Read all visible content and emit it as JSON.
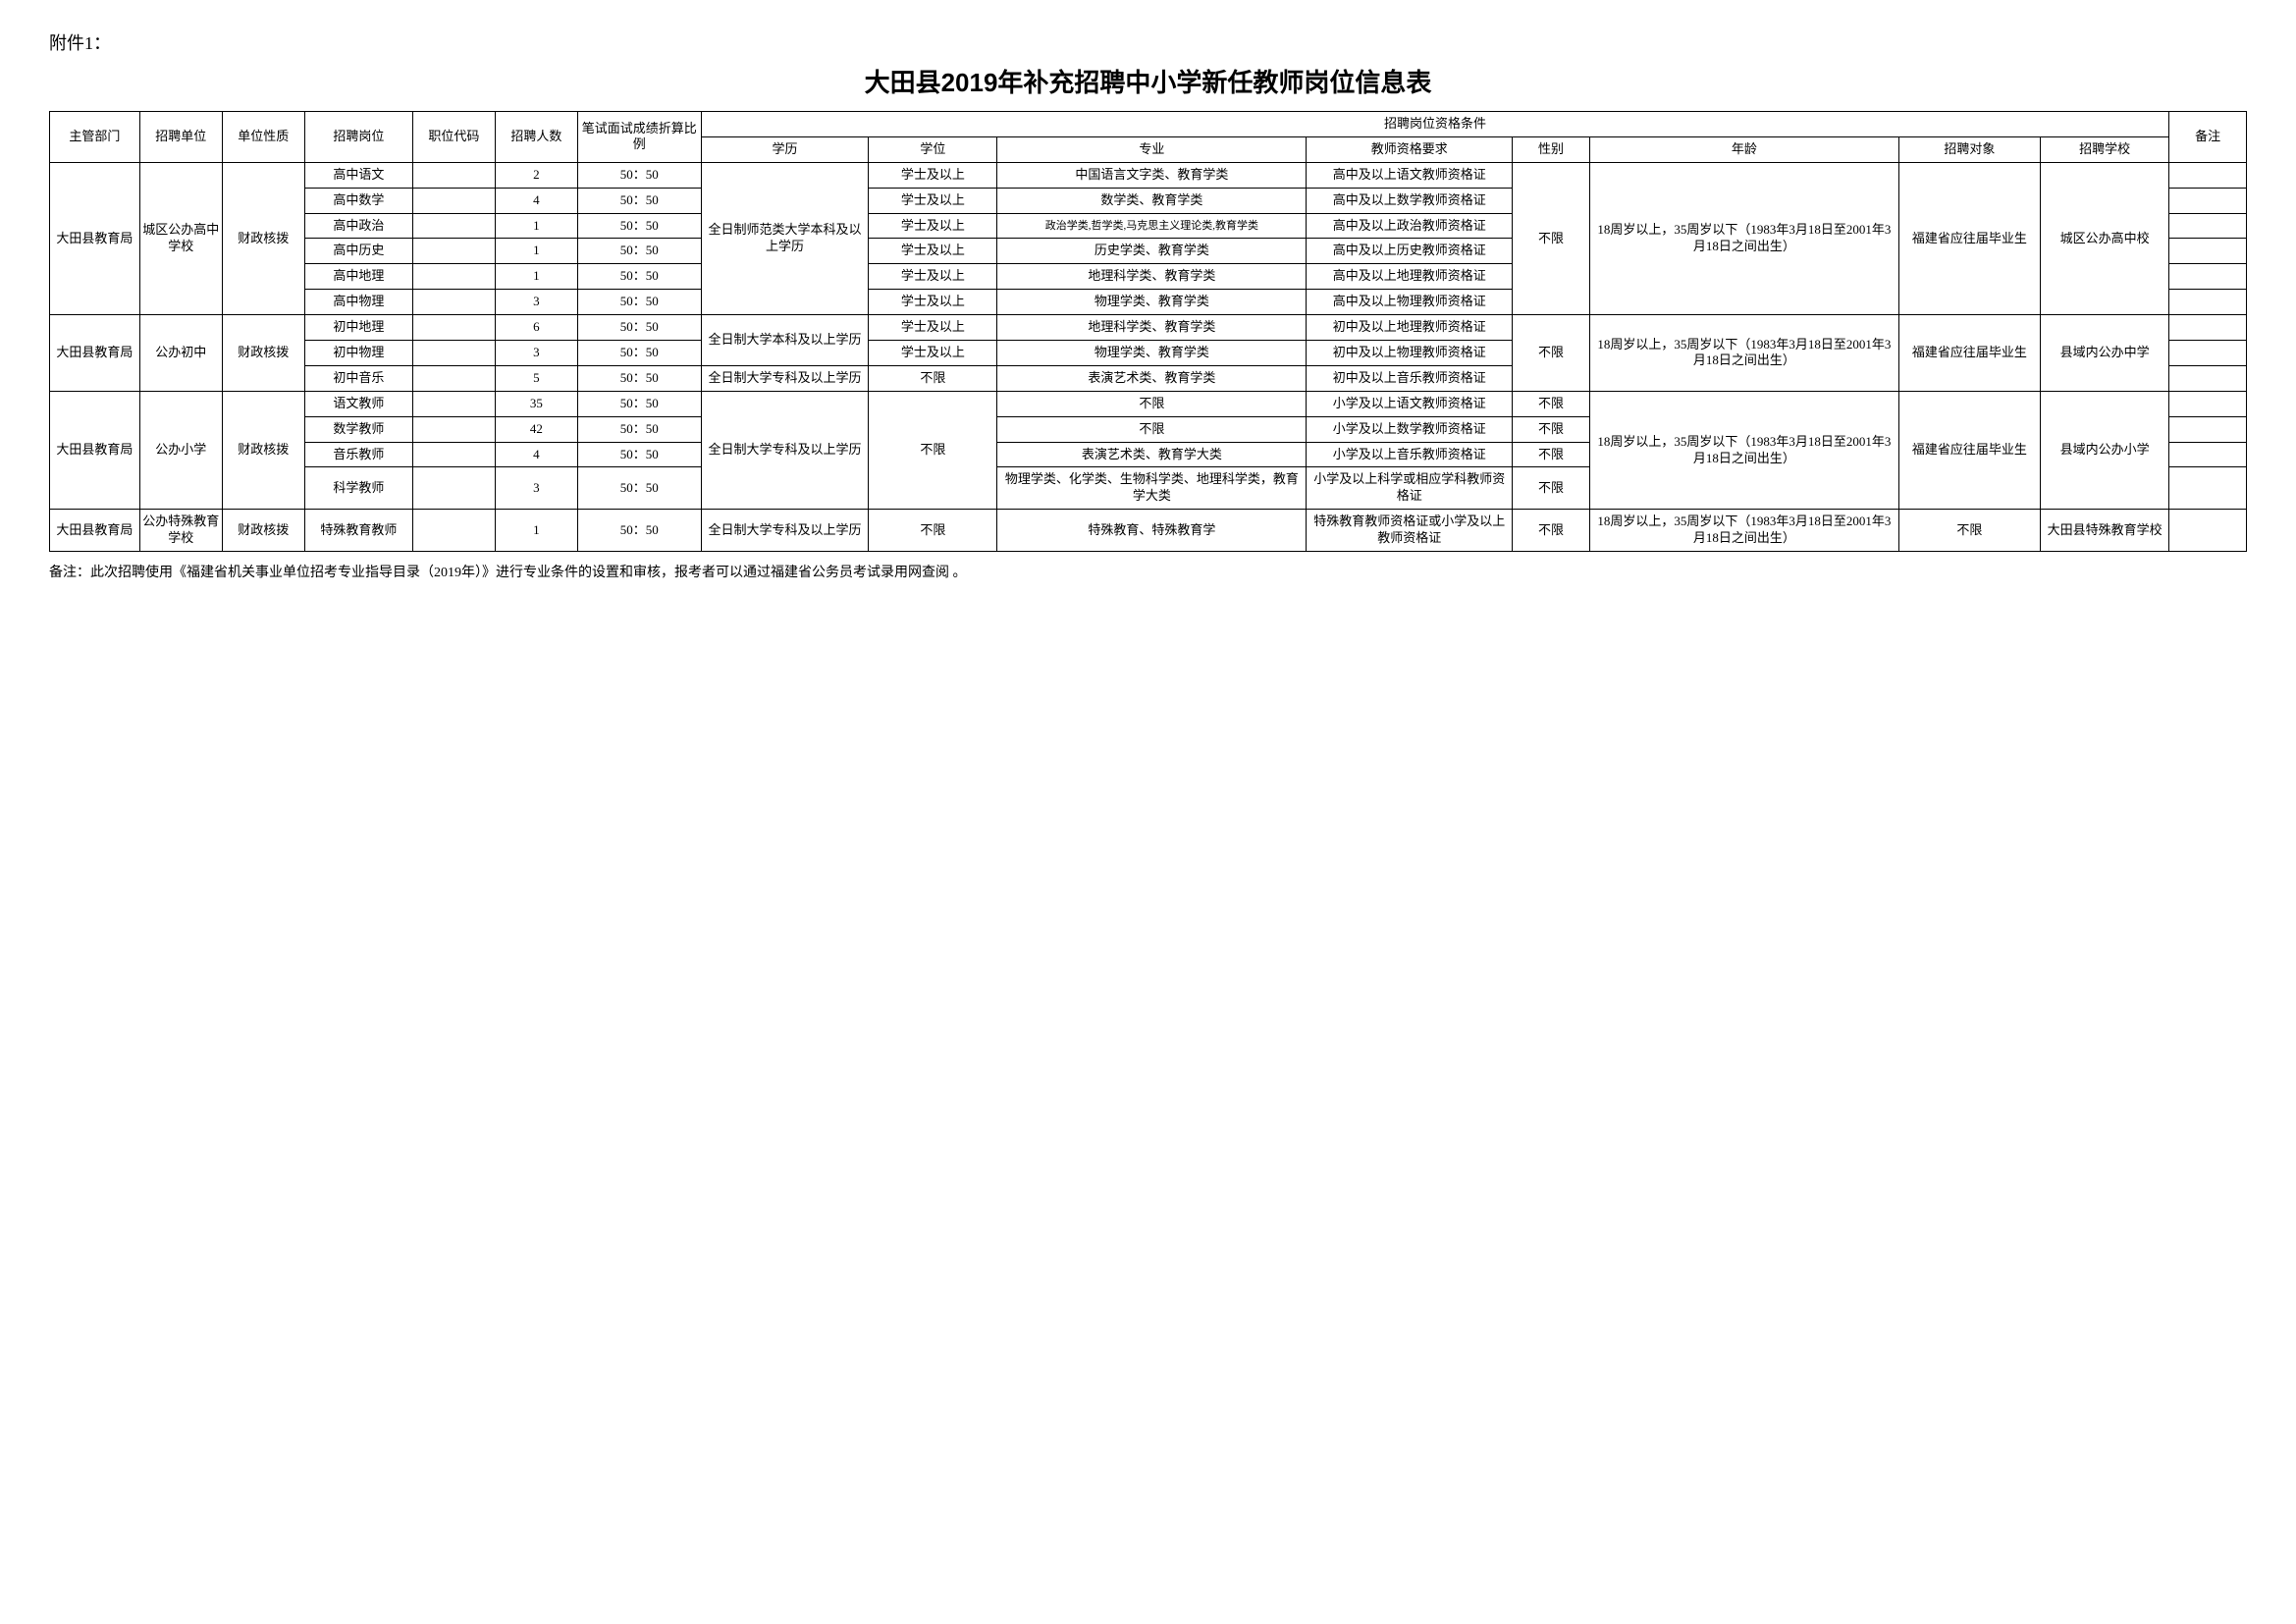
{
  "attachment": "附件1：",
  "title": "大田县2019年补充招聘中小学新任教师岗位信息表",
  "headers": {
    "dept": "主管部门",
    "unit": "招聘单位",
    "nature": "单位性质",
    "post": "招聘岗位",
    "code": "职位代码",
    "count": "招聘人数",
    "ratio": "笔试面试成绩折算比例",
    "qual": "招聘岗位资格条件",
    "edu": "学历",
    "degree": "学位",
    "major": "专业",
    "cert": "教师资格要求",
    "gender": "性别",
    "age": "年龄",
    "target": "招聘对象",
    "school": "招聘学校",
    "remark": "备注"
  },
  "groups": [
    {
      "dept": "大田县教育局",
      "unit": "城区公办高中学校",
      "nature": "财政核拨",
      "edu": "全日制师范类大学本科及以上学历",
      "gender": "不限",
      "age": "18周岁以上，35周岁以下（1983年3月18日至2001年3月18日之间出生）",
      "target": "福建省应往届毕业生",
      "school": "城区公办高中校",
      "rows": [
        {
          "post": "高中语文",
          "code": "",
          "count": "2",
          "ratio": "50：50",
          "degree": "学士及以上",
          "major": "中国语言文字类、教育学类",
          "cert": "高中及以上语文教师资格证",
          "remark": ""
        },
        {
          "post": "高中数学",
          "code": "",
          "count": "4",
          "ratio": "50：50",
          "degree": "学士及以上",
          "major": "数学类、教育学类",
          "cert": "高中及以上数学教师资格证",
          "remark": ""
        },
        {
          "post": "高中政治",
          "code": "",
          "count": "1",
          "ratio": "50：50",
          "degree": "学士及以上",
          "major": "政治学类,哲学类,马克思主义理论类,教育学类",
          "cert": "高中及以上政治教师资格证",
          "remark": "",
          "majorSmall": true
        },
        {
          "post": "高中历史",
          "code": "",
          "count": "1",
          "ratio": "50：50",
          "degree": "学士及以上",
          "major": "历史学类、教育学类",
          "cert": "高中及以上历史教师资格证",
          "remark": ""
        },
        {
          "post": "高中地理",
          "code": "",
          "count": "1",
          "ratio": "50：50",
          "degree": "学士及以上",
          "major": "地理科学类、教育学类",
          "cert": "高中及以上地理教师资格证",
          "remark": ""
        },
        {
          "post": "高中物理",
          "code": "",
          "count": "3",
          "ratio": "50：50",
          "degree": "学士及以上",
          "major": "物理学类、教育学类",
          "cert": "高中及以上物理教师资格证",
          "remark": ""
        }
      ]
    },
    {
      "dept": "大田县教育局",
      "unit": "公办初中",
      "nature": "财政核拨",
      "gender": "不限",
      "age": "18周岁以上，35周岁以下（1983年3月18日至2001年3月18日之间出生）",
      "target": "福建省应往届毕业生",
      "school": "县域内公办中学",
      "rows": [
        {
          "post": "初中地理",
          "code": "",
          "count": "6",
          "ratio": "50：50",
          "edu": "全日制大学本科及以上学历",
          "eduSpan": 2,
          "degree": "学士及以上",
          "major": "地理科学类、教育学类",
          "cert": "初中及以上地理教师资格证",
          "remark": ""
        },
        {
          "post": "初中物理",
          "code": "",
          "count": "3",
          "ratio": "50：50",
          "degree": "学士及以上",
          "major": "物理学类、教育学类",
          "cert": "初中及以上物理教师资格证",
          "remark": ""
        },
        {
          "post": "初中音乐",
          "code": "",
          "count": "5",
          "ratio": "50：50",
          "edu": "全日制大学专科及以上学历",
          "eduSpan": 1,
          "degree": "不限",
          "major": "表演艺术类、教育学类",
          "cert": "初中及以上音乐教师资格证",
          "remark": ""
        }
      ]
    },
    {
      "dept": "大田县教育局",
      "unit": "公办小学",
      "nature": "财政核拨",
      "edu": "全日制大学专科及以上学历",
      "degree": "不限",
      "age": "18周岁以上，35周岁以下（1983年3月18日至2001年3月18日之间出生）",
      "target": "福建省应往届毕业生",
      "school": "县域内公办小学",
      "rows": [
        {
          "post": "语文教师",
          "code": "",
          "count": "35",
          "ratio": "50：50",
          "major": "不限",
          "cert": "小学及以上语文教师资格证",
          "gender": "不限",
          "remark": ""
        },
        {
          "post": "数学教师",
          "code": "",
          "count": "42",
          "ratio": "50：50",
          "major": "不限",
          "cert": "小学及以上数学教师资格证",
          "gender": "不限",
          "remark": ""
        },
        {
          "post": "音乐教师",
          "code": "",
          "count": "4",
          "ratio": "50：50",
          "major": "表演艺术类、教育学大类",
          "cert": "小学及以上音乐教师资格证",
          "gender": "不限",
          "remark": ""
        },
        {
          "post": "科学教师",
          "code": "",
          "count": "3",
          "ratio": "50：50",
          "major": "物理学类、化学类、生物科学类、地理科学类，教育学大类",
          "cert": "小学及以上科学或相应学科教师资格证",
          "gender": "不限",
          "remark": ""
        }
      ]
    },
    {
      "dept": "大田县教育局",
      "unit": "公办特殊教育学校",
      "nature": "财政核拨",
      "rows": [
        {
          "post": "特殊教育教师",
          "code": "",
          "count": "1",
          "ratio": "50：50",
          "edu": "全日制大学专科及以上学历",
          "degree": "不限",
          "major": "特殊教育、特殊教育学",
          "cert": "特殊教育教师资格证或小学及以上教师资格证",
          "gender": "不限",
          "age": "18周岁以上，35周岁以下（1983年3月18日至2001年3月18日之间出生）",
          "target": "不限",
          "school": "大田县特殊教育学校",
          "remark": ""
        }
      ]
    }
  ],
  "footnote": "备注：此次招聘使用《福建省机关事业单位招考专业指导目录（2019年）》进行专业条件的设置和审核，报考者可以通过福建省公务员考试录用网查阅 。"
}
